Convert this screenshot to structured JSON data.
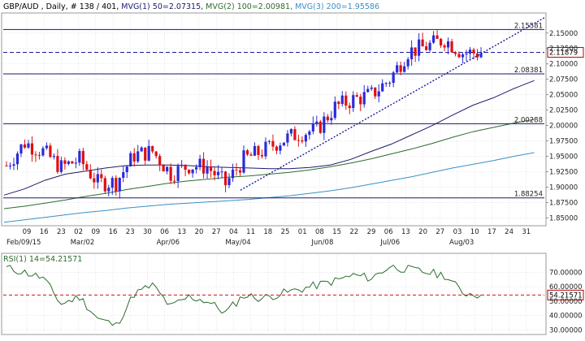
{
  "header": {
    "symbol_info": "GBP/AUD , Daily, # 138 / 401, ",
    "ma1_label": "MVG(1) 50=2.07315, ",
    "ma2_label": "MVG(2) 100=2.00981, ",
    "ma3_label": "MVG(3) 200=1.95586"
  },
  "colors": {
    "background": "#ffffff",
    "up_candle": "#2b2bd8",
    "down_candle": "#e01010",
    "ma50": "#1b1b6e",
    "ma100": "#2e6b2e",
    "ma200": "#3a8fc6",
    "level_line": "#1a1a66",
    "current_price_line": "#1a1a9a",
    "trendline": "#1a1a9a",
    "rsi_line": "#2e6b2e",
    "rsi_reference": "#d01010",
    "grid": "#d6d6d6",
    "price_badge_border": "#c00000"
  },
  "chart_data": [
    {
      "type": "candlestick",
      "title": "GBP/AUD , Daily, # 138 / 401",
      "ylim": [
        1.84,
        2.18
      ],
      "y_ticks": [
        "2.15000",
        "2.12500",
        "2.10000",
        "2.07500",
        "2.05000",
        "2.02500",
        "2.00000",
        "1.97500",
        "1.95000",
        "1.92500",
        "1.90000",
        "1.87500",
        "1.85000"
      ],
      "x_day_labels": [
        "09",
        "16",
        "23",
        "02",
        "09",
        "16",
        "23",
        "30",
        "06",
        "13",
        "20",
        "27",
        "04",
        "11",
        "18",
        "25",
        "01",
        "08",
        "15",
        "22",
        "29",
        "06",
        "13",
        "20",
        "27",
        "03",
        "10",
        "17",
        "24",
        "31"
      ],
      "x_month_labels": [
        "Feb/09/15",
        "Mar/02",
        "Apr/06",
        "May/04",
        "Jun/08",
        "Jul/06",
        "Aug/03"
      ],
      "grid": true,
      "horizontal_levels": [
        {
          "label": "2.15581",
          "value": 2.15581
        },
        {
          "label": "2.08381",
          "value": 2.08381
        },
        {
          "label": "2.00288",
          "value": 2.00288
        },
        {
          "label": "1.88254",
          "value": 1.88254
        }
      ],
      "current_price": {
        "label": "2.11879",
        "value": 2.11879
      },
      "trendline": [
        {
          "x": "2015-05-04",
          "y": 1.895
        },
        {
          "x": "2015-08-31",
          "y": 2.175
        }
      ],
      "series": [
        {
          "name": "MVG(1) 50",
          "values_by_week": [
            1.887,
            1.897,
            1.911,
            1.921,
            1.926,
            1.931,
            1.935,
            1.936,
            1.936,
            1.935,
            1.933,
            1.932,
            1.931,
            1.93,
            1.93,
            1.932,
            1.936,
            1.945,
            1.958,
            1.97,
            1.985,
            2.0,
            2.017,
            2.033,
            2.045,
            2.06,
            2.073
          ]
        },
        {
          "name": "MVG(2) 100",
          "values_by_week": [
            1.865,
            1.869,
            1.874,
            1.879,
            1.885,
            1.89,
            1.896,
            1.901,
            1.906,
            1.91,
            1.913,
            1.916,
            1.918,
            1.921,
            1.924,
            1.928,
            1.933,
            1.939,
            1.946,
            1.954,
            1.962,
            1.971,
            1.981,
            1.99,
            1.997,
            2.004,
            2.01
          ]
        },
        {
          "name": "MVG(3) 200",
          "values_by_week": [
            1.843,
            1.847,
            1.851,
            1.855,
            1.859,
            1.862,
            1.866,
            1.869,
            1.872,
            1.874,
            1.876,
            1.878,
            1.88,
            1.883,
            1.886,
            1.89,
            1.894,
            1.899,
            1.905,
            1.911,
            1.917,
            1.924,
            1.931,
            1.937,
            1.943,
            1.95,
            1.956
          ]
        }
      ],
      "ohlc_note": "Weekly closes used to generate daily candles",
      "close_by_week": [
        1.935,
        1.972,
        1.958,
        1.932,
        1.945,
        1.907,
        1.908,
        1.952,
        1.958,
        1.922,
        1.935,
        1.933,
        1.905,
        1.945,
        1.958,
        1.975,
        1.987,
        1.993,
        2.03,
        2.042,
        2.05,
        2.075,
        2.12,
        2.128,
        2.14,
        2.118,
        2.118
      ]
    },
    {
      "type": "line",
      "title": "RSI(1) 14=54.21571",
      "series_name": "RSI(1) 14",
      "current_value_label": "54.21571",
      "ylim": [
        28,
        82
      ],
      "y_ticks": [
        "70.00000",
        "60.00000",
        "50.00000",
        "40.00000",
        "30.00000"
      ],
      "reference_level": 54.21571,
      "grid": true,
      "values_by_week": [
        73,
        70,
        66,
        48,
        53,
        38,
        33,
        55,
        61,
        46,
        53,
        50,
        42,
        54,
        52,
        55,
        58,
        61,
        64,
        68,
        66,
        74,
        72,
        70,
        68,
        56,
        54.21571
      ]
    }
  ]
}
